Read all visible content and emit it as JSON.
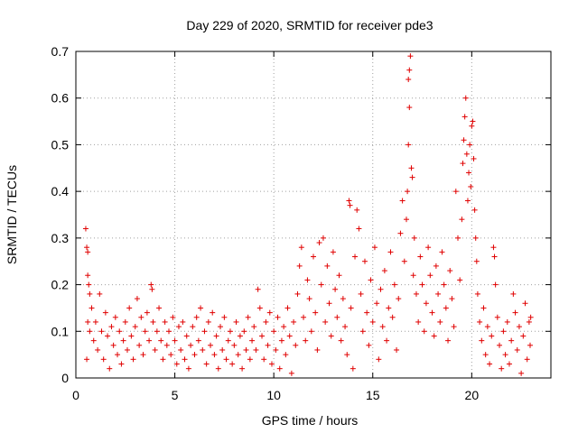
{
  "chart_data": {
    "type": "scatter",
    "title": "Day 229 of 2020, SRMTID for receiver pde3",
    "xlabel": "GPS time / hours",
    "ylabel": "SRMTID / TECUs",
    "xlim": [
      0,
      24
    ],
    "ylim": [
      0,
      0.7
    ],
    "xticks": [
      0,
      5,
      10,
      15,
      20
    ],
    "xtick_labels": [
      "0",
      "5",
      "10",
      "15",
      "20"
    ],
    "yticks": [
      0,
      0.1,
      0.2,
      0.3,
      0.4,
      0.5,
      0.6,
      0.7
    ],
    "ytick_labels": [
      "0",
      "0.1",
      "0.2",
      "0.3",
      "0.4",
      "0.5",
      "0.6",
      "0.7"
    ],
    "grid": true,
    "marker": "+",
    "series": [
      {
        "name": "pde3",
        "color": "#e00000",
        "points": [
          [
            0.5,
            0.32
          ],
          [
            0.55,
            0.28
          ],
          [
            0.6,
            0.27
          ],
          [
            0.6,
            0.22
          ],
          [
            0.65,
            0.2
          ],
          [
            0.7,
            0.18
          ],
          [
            0.6,
            0.12
          ],
          [
            0.55,
            0.04
          ],
          [
            0.7,
            0.1
          ],
          [
            0.8,
            0.15
          ],
          [
            0.9,
            0.08
          ],
          [
            1.0,
            0.12
          ],
          [
            1.1,
            0.06
          ],
          [
            1.2,
            0.18
          ],
          [
            1.3,
            0.1
          ],
          [
            1.4,
            0.04
          ],
          [
            1.5,
            0.14
          ],
          [
            1.6,
            0.09
          ],
          [
            1.7,
            0.02
          ],
          [
            1.8,
            0.11
          ],
          [
            1.9,
            0.07
          ],
          [
            2.0,
            0.13
          ],
          [
            2.1,
            0.05
          ],
          [
            2.2,
            0.1
          ],
          [
            2.3,
            0.03
          ],
          [
            2.4,
            0.08
          ],
          [
            2.5,
            0.12
          ],
          [
            2.6,
            0.06
          ],
          [
            2.7,
            0.15
          ],
          [
            2.8,
            0.09
          ],
          [
            2.9,
            0.04
          ],
          [
            3.0,
            0.11
          ],
          [
            3.1,
            0.17
          ],
          [
            3.2,
            0.07
          ],
          [
            3.3,
            0.13
          ],
          [
            3.4,
            0.05
          ],
          [
            3.5,
            0.1
          ],
          [
            3.6,
            0.14
          ],
          [
            3.7,
            0.08
          ],
          [
            3.8,
            0.2
          ],
          [
            3.85,
            0.19
          ],
          [
            3.9,
            0.12
          ],
          [
            4.0,
            0.06
          ],
          [
            4.1,
            0.1
          ],
          [
            4.2,
            0.15
          ],
          [
            4.3,
            0.08
          ],
          [
            4.4,
            0.04
          ],
          [
            4.5,
            0.12
          ],
          [
            4.6,
            0.07
          ],
          [
            4.7,
            0.1
          ],
          [
            4.8,
            0.05
          ],
          [
            4.9,
            0.13
          ],
          [
            5.0,
            0.08
          ],
          [
            5.1,
            0.03
          ],
          [
            5.2,
            0.11
          ],
          [
            5.3,
            0.06
          ],
          [
            5.4,
            0.12
          ],
          [
            5.5,
            0.04
          ],
          [
            5.6,
            0.09
          ],
          [
            5.7,
            0.02
          ],
          [
            5.8,
            0.07
          ],
          [
            5.9,
            0.11
          ],
          [
            6.0,
            0.05
          ],
          [
            6.1,
            0.13
          ],
          [
            6.2,
            0.08
          ],
          [
            6.3,
            0.15
          ],
          [
            6.4,
            0.06
          ],
          [
            6.5,
            0.1
          ],
          [
            6.6,
            0.03
          ],
          [
            6.7,
            0.12
          ],
          [
            6.8,
            0.07
          ],
          [
            6.9,
            0.14
          ],
          [
            7.0,
            0.05
          ],
          [
            7.1,
            0.09
          ],
          [
            7.2,
            0.02
          ],
          [
            7.3,
            0.11
          ],
          [
            7.4,
            0.06
          ],
          [
            7.5,
            0.13
          ],
          [
            7.6,
            0.04
          ],
          [
            7.7,
            0.08
          ],
          [
            7.8,
            0.1
          ],
          [
            7.9,
            0.03
          ],
          [
            8.0,
            0.07
          ],
          [
            8.1,
            0.12
          ],
          [
            8.2,
            0.05
          ],
          [
            8.3,
            0.09
          ],
          [
            8.4,
            0.02
          ],
          [
            8.5,
            0.1
          ],
          [
            8.6,
            0.06
          ],
          [
            8.7,
            0.13
          ],
          [
            8.8,
            0.04
          ],
          [
            8.9,
            0.08
          ],
          [
            9.0,
            0.11
          ],
          [
            9.1,
            0.06
          ],
          [
            9.2,
            0.19
          ],
          [
            9.3,
            0.15
          ],
          [
            9.4,
            0.09
          ],
          [
            9.5,
            0.04
          ],
          [
            9.6,
            0.12
          ],
          [
            9.7,
            0.07
          ],
          [
            9.8,
            0.14
          ],
          [
            9.9,
            0.03
          ],
          [
            10.0,
            0.1
          ],
          [
            10.1,
            0.06
          ],
          [
            10.2,
            0.13
          ],
          [
            10.3,
            0.02
          ],
          [
            10.4,
            0.08
          ],
          [
            10.5,
            0.11
          ],
          [
            10.6,
            0.05
          ],
          [
            10.7,
            0.15
          ],
          [
            10.8,
            0.09
          ],
          [
            10.9,
            0.01
          ],
          [
            11.0,
            0.12
          ],
          [
            11.1,
            0.07
          ],
          [
            11.2,
            0.18
          ],
          [
            11.3,
            0.24
          ],
          [
            11.4,
            0.28
          ],
          [
            11.5,
            0.13
          ],
          [
            11.6,
            0.08
          ],
          [
            11.7,
            0.21
          ],
          [
            11.8,
            0.17
          ],
          [
            11.9,
            0.1
          ],
          [
            12.0,
            0.26
          ],
          [
            12.1,
            0.14
          ],
          [
            12.2,
            0.06
          ],
          [
            12.3,
            0.29
          ],
          [
            12.4,
            0.2
          ],
          [
            12.5,
            0.3
          ],
          [
            12.6,
            0.12
          ],
          [
            12.7,
            0.24
          ],
          [
            12.8,
            0.16
          ],
          [
            12.9,
            0.09
          ],
          [
            13.0,
            0.27
          ],
          [
            13.1,
            0.19
          ],
          [
            13.2,
            0.13
          ],
          [
            13.3,
            0.22
          ],
          [
            13.4,
            0.08
          ],
          [
            13.5,
            0.17
          ],
          [
            13.6,
            0.11
          ],
          [
            13.7,
            0.05
          ],
          [
            13.8,
            0.38
          ],
          [
            13.85,
            0.37
          ],
          [
            13.9,
            0.15
          ],
          [
            14.0,
            0.02
          ],
          [
            14.1,
            0.26
          ],
          [
            14.2,
            0.36
          ],
          [
            14.3,
            0.32
          ],
          [
            14.4,
            0.18
          ],
          [
            14.5,
            0.1
          ],
          [
            14.6,
            0.25
          ],
          [
            14.7,
            0.14
          ],
          [
            14.8,
            0.07
          ],
          [
            14.9,
            0.21
          ],
          [
            15.0,
            0.12
          ],
          [
            15.1,
            0.28
          ],
          [
            15.2,
            0.16
          ],
          [
            15.3,
            0.04
          ],
          [
            15.4,
            0.19
          ],
          [
            15.5,
            0.11
          ],
          [
            15.6,
            0.23
          ],
          [
            15.7,
            0.08
          ],
          [
            15.8,
            0.15
          ],
          [
            15.9,
            0.27
          ],
          [
            16.0,
            0.13
          ],
          [
            16.1,
            0.2
          ],
          [
            16.2,
            0.06
          ],
          [
            16.3,
            0.17
          ],
          [
            16.4,
            0.31
          ],
          [
            16.5,
            0.38
          ],
          [
            16.6,
            0.25
          ],
          [
            16.7,
            0.34
          ],
          [
            16.75,
            0.4
          ],
          [
            16.8,
            0.5
          ],
          [
            16.85,
            0.58
          ],
          [
            16.8,
            0.64
          ],
          [
            16.85,
            0.66
          ],
          [
            16.9,
            0.69
          ],
          [
            16.95,
            0.45
          ],
          [
            17.0,
            0.43
          ],
          [
            17.05,
            0.22
          ],
          [
            17.1,
            0.3
          ],
          [
            17.2,
            0.18
          ],
          [
            17.3,
            0.12
          ],
          [
            17.4,
            0.26
          ],
          [
            17.5,
            0.2
          ],
          [
            17.6,
            0.1
          ],
          [
            17.7,
            0.16
          ],
          [
            17.8,
            0.28
          ],
          [
            17.9,
            0.22
          ],
          [
            18.0,
            0.14
          ],
          [
            18.1,
            0.09
          ],
          [
            18.2,
            0.24
          ],
          [
            18.3,
            0.18
          ],
          [
            18.4,
            0.12
          ],
          [
            18.5,
            0.27
          ],
          [
            18.6,
            0.2
          ],
          [
            18.7,
            0.15
          ],
          [
            18.8,
            0.08
          ],
          [
            18.9,
            0.23
          ],
          [
            19.0,
            0.17
          ],
          [
            19.1,
            0.11
          ],
          [
            19.2,
            0.4
          ],
          [
            19.3,
            0.3
          ],
          [
            19.4,
            0.21
          ],
          [
            19.5,
            0.34
          ],
          [
            19.55,
            0.46
          ],
          [
            19.6,
            0.51
          ],
          [
            19.65,
            0.56
          ],
          [
            19.7,
            0.6
          ],
          [
            19.75,
            0.48
          ],
          [
            19.8,
            0.38
          ],
          [
            19.85,
            0.44
          ],
          [
            19.9,
            0.5
          ],
          [
            19.95,
            0.41
          ],
          [
            20.0,
            0.54
          ],
          [
            20.05,
            0.55
          ],
          [
            20.1,
            0.47
          ],
          [
            20.15,
            0.36
          ],
          [
            20.2,
            0.3
          ],
          [
            20.25,
            0.25
          ],
          [
            20.3,
            0.18
          ],
          [
            20.4,
            0.12
          ],
          [
            20.5,
            0.08
          ],
          [
            20.6,
            0.15
          ],
          [
            20.7,
            0.05
          ],
          [
            20.8,
            0.11
          ],
          [
            20.9,
            0.03
          ],
          [
            21.0,
            0.09
          ],
          [
            21.1,
            0.28
          ],
          [
            21.15,
            0.26
          ],
          [
            21.2,
            0.2
          ],
          [
            21.3,
            0.13
          ],
          [
            21.4,
            0.07
          ],
          [
            21.5,
            0.02
          ],
          [
            21.6,
            0.1
          ],
          [
            21.7,
            0.05
          ],
          [
            21.8,
            0.12
          ],
          [
            21.9,
            0.03
          ],
          [
            22.0,
            0.08
          ],
          [
            22.1,
            0.18
          ],
          [
            22.2,
            0.14
          ],
          [
            22.3,
            0.06
          ],
          [
            22.4,
            0.11
          ],
          [
            22.5,
            0.01
          ],
          [
            22.6,
            0.09
          ],
          [
            22.7,
            0.16
          ],
          [
            22.8,
            0.04
          ],
          [
            22.9,
            0.12
          ],
          [
            22.95,
            0.07
          ],
          [
            22.98,
            0.13
          ]
        ]
      }
    ]
  }
}
